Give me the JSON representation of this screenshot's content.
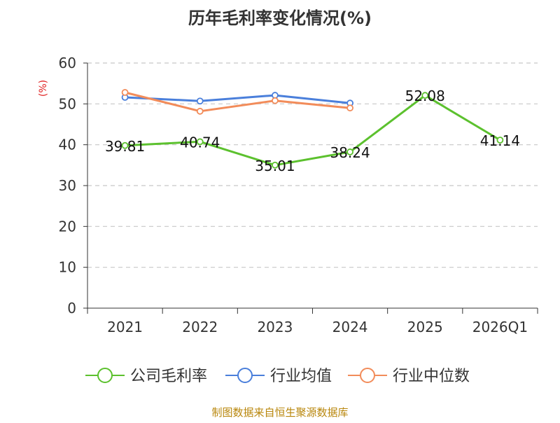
{
  "chart_data": {
    "type": "line",
    "title": "历年毛利率变化情况(%)",
    "ylabel": "(%)",
    "xlabel": "",
    "categories": [
      "2021",
      "2022",
      "2023",
      "2024",
      "2025",
      "2026Q1"
    ],
    "ylim": [
      0,
      60
    ],
    "yticks": [
      0,
      10,
      20,
      30,
      40,
      50,
      60
    ],
    "grid": true,
    "legend_position": "bottom",
    "series": [
      {
        "name": "公司毛利率",
        "color": "#5cc12e",
        "values": [
          39.81,
          40.74,
          35.01,
          38.24,
          52.08,
          41.14
        ],
        "data_labels": [
          "39.81",
          "40.74",
          "35.01",
          "38.24",
          "52.08",
          "41.14"
        ]
      },
      {
        "name": "行业均值",
        "color": "#4a7fdb",
        "values": [
          51.6,
          50.7,
          52.1,
          50.2,
          null,
          null
        ]
      },
      {
        "name": "行业中位数",
        "color": "#f28c5a",
        "values": [
          52.8,
          48.2,
          50.8,
          49.0,
          null,
          null
        ]
      }
    ],
    "source": "制图数据来自恒生聚源数据库"
  }
}
